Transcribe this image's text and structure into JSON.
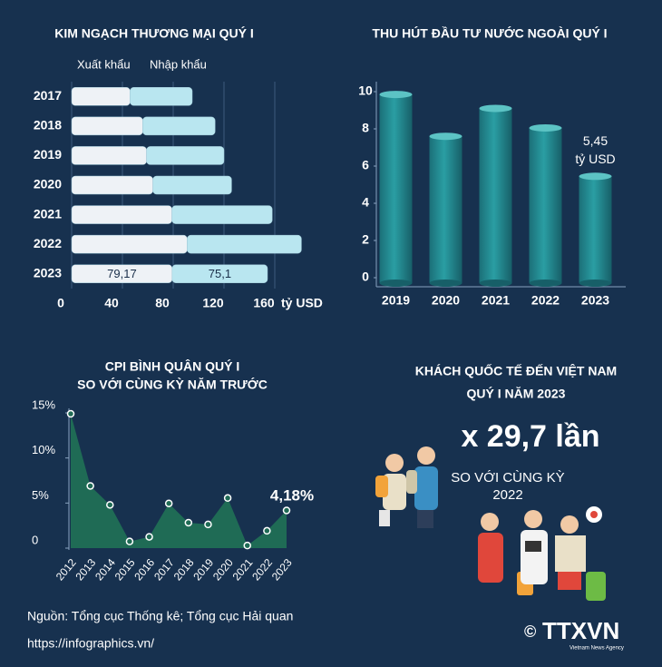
{
  "chart_data": [
    {
      "type": "bar",
      "orientation": "horizontal",
      "stacked": true,
      "title": "KIM NGẠCH THƯƠNG MẠI QUÝ I",
      "categories": [
        "2017",
        "2018",
        "2019",
        "2020",
        "2021",
        "2022",
        "2023"
      ],
      "series": [
        {
          "name": "Xuất khẩu",
          "color": "#eef2f6",
          "values": [
            46,
            56,
            59,
            64,
            79,
            91,
            79.17
          ],
          "value_labels": [
            null,
            null,
            null,
            null,
            null,
            null,
            "79,17"
          ]
        },
        {
          "name": "Nhập khẩu",
          "color": "#b9e6f0",
          "values": [
            49,
            57,
            61,
            62,
            79,
            90,
            75.1
          ],
          "value_labels": [
            null,
            null,
            null,
            null,
            null,
            null,
            "75,1"
          ]
        }
      ],
      "xlim": [
        0,
        170
      ],
      "xticks": [
        0,
        40,
        80,
        120,
        160
      ],
      "x_label": "tỷ USD",
      "grid": true
    },
    {
      "type": "bar",
      "orientation": "vertical",
      "style": "cylinder",
      "title": "THU HÚT ĐẦU TƯ NƯỚC NGOÀI QUÝ I",
      "categories": [
        "2019",
        "2020",
        "2021",
        "2022",
        "2023"
      ],
      "values": [
        9.85,
        7.6,
        9.1,
        8.05,
        5.45
      ],
      "value_labels": [
        null,
        null,
        null,
        null,
        "5,45"
      ],
      "annotation": "tỷ USD",
      "color": "#2a9ea3",
      "ylim": [
        0,
        10
      ],
      "yticks": [
        0,
        2,
        4,
        6,
        8,
        10
      ]
    },
    {
      "type": "area",
      "title": "CPI BÌNH QUÂN QUÝ I",
      "subtitle": "SO VỚI CÙNG KỲ NĂM TRƯỚC",
      "categories": [
        "2012",
        "2013",
        "2014",
        "2015",
        "2016",
        "2017",
        "2018",
        "2019",
        "2020",
        "2021",
        "2022",
        "2023"
      ],
      "values": [
        14.9,
        6.9,
        4.8,
        0.74,
        1.25,
        4.96,
        2.82,
        2.63,
        5.56,
        0.29,
        1.92,
        4.18
      ],
      "value_labels": [
        null,
        null,
        null,
        null,
        null,
        null,
        null,
        null,
        null,
        null,
        null,
        "4,18%"
      ],
      "color": "#1f6b55",
      "ylim": [
        0,
        15
      ],
      "yticks": [
        0,
        {
          "value": 5,
          "label": "5%"
        },
        {
          "value": 10,
          "label": "10%"
        },
        {
          "value": 15,
          "label": "15%"
        }
      ]
    }
  ],
  "visitors": {
    "title": [
      "KHÁCH QUỐC TẾ ĐẾN VIỆT NAM",
      "QUÝ I NĂM 2023"
    ],
    "headline": "x 29,7 lần",
    "note": [
      "SO VỚI CÙNG KỲ",
      "2022"
    ]
  },
  "footer": {
    "source": "Nguồn: Tổng cục Thống kê; Tổng cục Hải quan",
    "url": "https://infographics.vn/",
    "copyright": "©",
    "logo": "TTXVN",
    "agency": "Vietnam News Agency"
  }
}
